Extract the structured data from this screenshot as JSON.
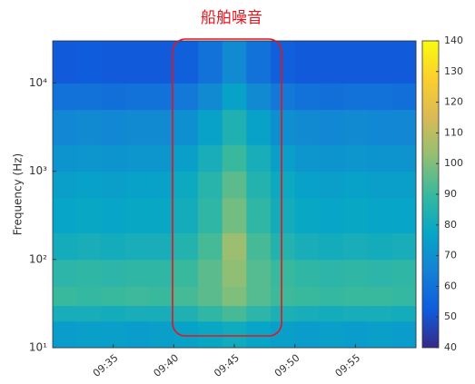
{
  "chart_data": {
    "type": "heatmap",
    "annotation": "船舶噪音",
    "annotation_color": "#e8141b",
    "ylabel": "Frequency (Hz)",
    "xlim": [
      "09:30",
      "10:00"
    ],
    "xticks": [
      "09:35",
      "09:40",
      "09:45",
      "09:50",
      "09:55"
    ],
    "xbins": [
      "09:30",
      "09:32",
      "09:34",
      "09:36",
      "09:38",
      "09:40",
      "09:42",
      "09:44",
      "09:46",
      "09:48",
      "09:50",
      "09:52",
      "09:54",
      "09:56",
      "09:58",
      "10:00"
    ],
    "ylog": true,
    "ylim": [
      10,
      30000
    ],
    "yticks": [
      {
        "value": 10,
        "label": "10¹"
      },
      {
        "value": 100,
        "label": "10²"
      },
      {
        "value": 1000,
        "label": "10³"
      },
      {
        "value": 10000,
        "label": "10⁴"
      }
    ],
    "ybins": [
      10,
      20,
      30,
      50,
      100,
      200,
      500,
      1000,
      2000,
      5000,
      10000,
      30000
    ],
    "values": [
      [
        74,
        75,
        75,
        74,
        75,
        76,
        78,
        80,
        77,
        75,
        74,
        75,
        74,
        75,
        74
      ],
      [
        82,
        82,
        81,
        82,
        82,
        84,
        88,
        92,
        87,
        83,
        82,
        81,
        82,
        82,
        81
      ],
      [
        90,
        89,
        90,
        91,
        90,
        92,
        95,
        100,
        94,
        91,
        90,
        89,
        90,
        90,
        89
      ],
      [
        87,
        88,
        87,
        88,
        88,
        90,
        95,
        102,
        94,
        90,
        88,
        87,
        88,
        87,
        88
      ],
      [
        81,
        82,
        81,
        82,
        82,
        85,
        92,
        104,
        92,
        85,
        82,
        81,
        82,
        81,
        82
      ],
      [
        77,
        78,
        77,
        78,
        78,
        81,
        88,
        98,
        88,
        81,
        78,
        77,
        78,
        77,
        77
      ],
      [
        75,
        76,
        75,
        76,
        76,
        79,
        86,
        95,
        85,
        79,
        76,
        75,
        76,
        75,
        75
      ],
      [
        71,
        72,
        71,
        72,
        72,
        75,
        82,
        90,
        82,
        75,
        72,
        71,
        72,
        71,
        71
      ],
      [
        67,
        68,
        67,
        68,
        68,
        70,
        76,
        84,
        76,
        70,
        68,
        67,
        68,
        67,
        67
      ],
      [
        60,
        60,
        59,
        60,
        60,
        62,
        68,
        76,
        68,
        62,
        60,
        59,
        60,
        60,
        59
      ],
      [
        52,
        53,
        52,
        52,
        52,
        54,
        60,
        68,
        60,
        54,
        52,
        52,
        52,
        52,
        52
      ]
    ],
    "clim": [
      40,
      140
    ],
    "cticks": [
      40,
      50,
      60,
      70,
      80,
      90,
      100,
      110,
      120,
      130,
      140
    ],
    "colormap": [
      "#352a87",
      "#0f5cdd",
      "#1481d6",
      "#06a7c6",
      "#38b99e",
      "#92bf73",
      "#d9ba56",
      "#fcce2e",
      "#f9fb0e"
    ]
  }
}
